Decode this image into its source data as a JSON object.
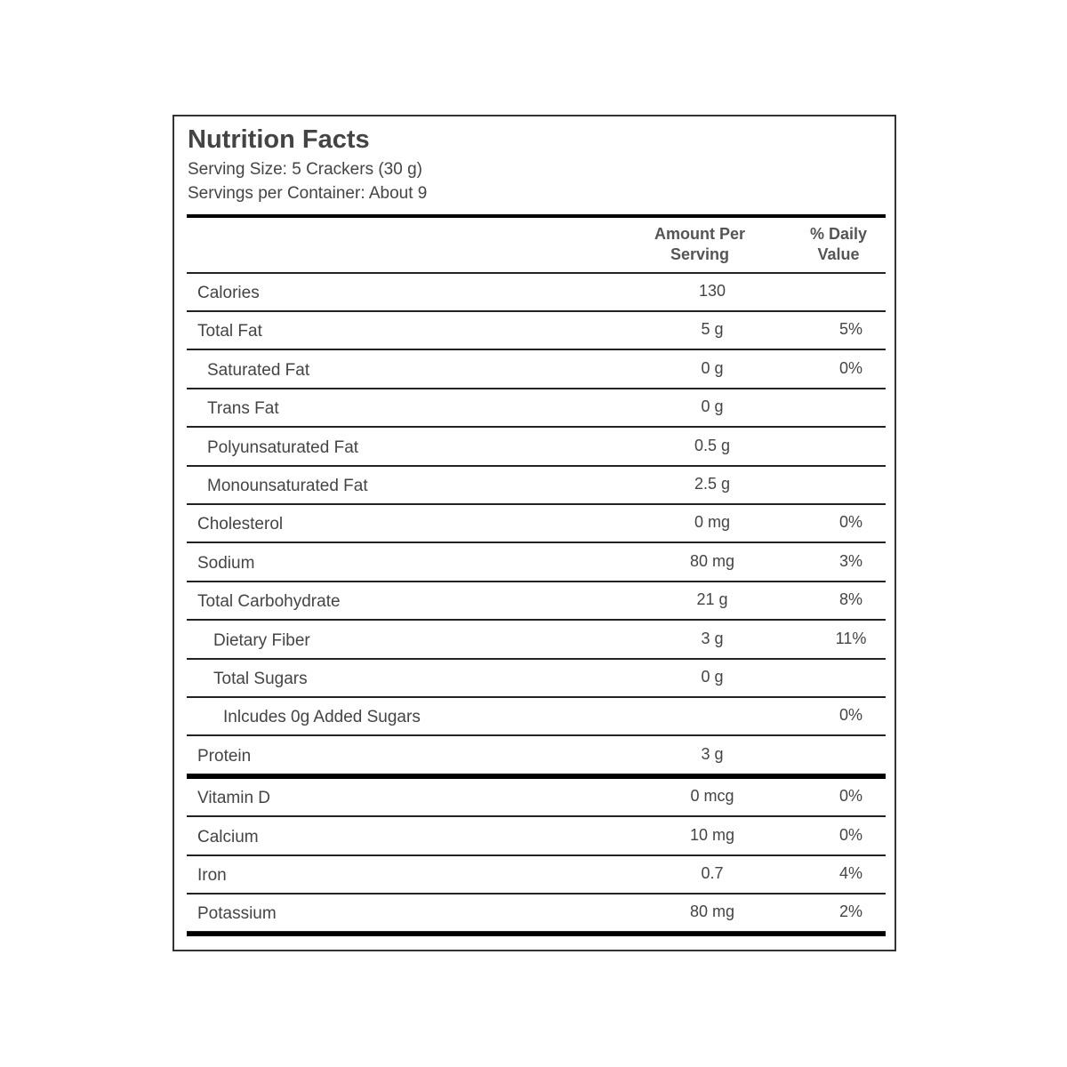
{
  "title": "Nutrition Facts",
  "serving_size": "Serving Size: 5 Crackers (30 g)",
  "servings_per_container": "Servings per Container: About 9",
  "headers": {
    "amount": "Amount Per Serving",
    "daily_value": "% Daily Value"
  },
  "nutrients": [
    {
      "name": "Calories",
      "amount": "130",
      "dv": "",
      "indent": 0
    },
    {
      "name": "Total Fat",
      "amount": "5 g",
      "dv": "5%",
      "indent": 0
    },
    {
      "name": "Saturated Fat",
      "amount": "0 g",
      "dv": "0%",
      "indent": 1
    },
    {
      "name": "Trans Fat",
      "amount": "0 g",
      "dv": "",
      "indent": 1
    },
    {
      "name": "Polyunsaturated Fat",
      "amount": "0.5 g",
      "dv": "",
      "indent": 1
    },
    {
      "name": "Monounsaturated Fat",
      "amount": "2.5 g",
      "dv": "",
      "indent": 1
    },
    {
      "name": "Cholesterol",
      "amount": "0 mg",
      "dv": "0%",
      "indent": 0
    },
    {
      "name": "Sodium",
      "amount": "80 mg",
      "dv": "3%",
      "indent": 0
    },
    {
      "name": "Total Carbohydrate",
      "amount": "21 g",
      "dv": "8%",
      "indent": 0
    },
    {
      "name": "Dietary Fiber",
      "amount": "3 g",
      "dv": "11%",
      "indent": 2
    },
    {
      "name": "Total Sugars",
      "amount": "0 g",
      "dv": "",
      "indent": 2
    },
    {
      "name": "Inlcudes 0g Added Sugars",
      "amount": "",
      "dv": "0%",
      "indent": 3
    },
    {
      "name": "Protein",
      "amount": "3 g",
      "dv": "",
      "indent": 0
    }
  ],
  "vitamins": [
    {
      "name": "Vitamin D",
      "amount": "0 mcg",
      "dv": "0%"
    },
    {
      "name": "Calcium",
      "amount": "10 mg",
      "dv": "0%"
    },
    {
      "name": "Iron",
      "amount": "0.7",
      "dv": "4%"
    },
    {
      "name": "Potassium",
      "amount": "80 mg",
      "dv": "2%"
    }
  ]
}
